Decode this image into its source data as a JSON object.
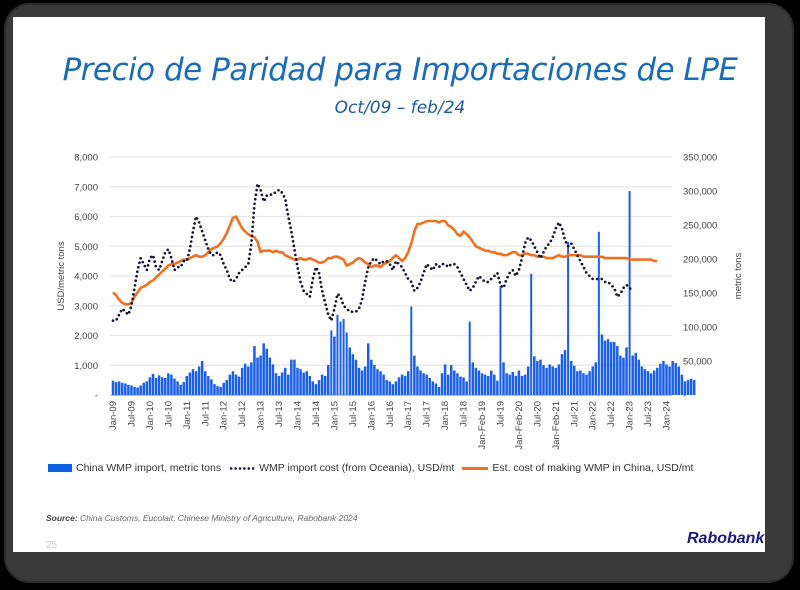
{
  "slide": {
    "title": "Precio de Paridad para Importaciones de LPE",
    "subtitle": "Oct/09 – feb/24",
    "source_label": "Source:",
    "source_text": " China Customs, Eucolait, Chinese Ministry of Agriculture, Rabobank 2024",
    "page_number": "25",
    "brand": "Rabobank"
  },
  "colors": {
    "bars": "#1a5fe6",
    "import_cost": "#14143c",
    "china_cost": "#f07020",
    "title": "#1a6cb8",
    "grid": "#e6e6e6"
  },
  "chart_data": {
    "type": "bar+line",
    "title": "Precio de Paridad para Importaciones de LPE",
    "subtitle": "Oct/09 – feb/24",
    "ylabel": "USD/metric tons",
    "y2label": "metric tons",
    "ylim": [
      0,
      8000
    ],
    "y2lim": [
      0,
      350000
    ],
    "yticks": [
      "-",
      "1,000",
      "2,000",
      "3,000",
      "4,000",
      "5,000",
      "6,000",
      "7,000",
      "8,000"
    ],
    "y2ticks": [
      "-",
      "50,000",
      "100,000",
      "150,000",
      "200,000",
      "250,000",
      "300,000",
      "350,000"
    ],
    "grid": true,
    "legend_position": "bottom",
    "xticks": [
      "Jan-09",
      "Jul-09",
      "Jan-10",
      "Jul-10",
      "Jan-11",
      "Jul-11",
      "Jan-12",
      "Jul-12",
      "Jan-13",
      "Jul-13",
      "Jan-14",
      "Jul-14",
      "Jan-15",
      "Jul-15",
      "Jan-16",
      "Jul-16",
      "Jan-17",
      "Jul-17",
      "Jan-18",
      "Jul-18",
      "Jan-Feb-19",
      "Jul-19",
      "Jan-Feb-20",
      "Jul-20",
      "Jan-Feb-21",
      "Jul-21",
      "Jan-22",
      "Jul-22",
      "Jan-23",
      "Jul-23",
      "Jan-24"
    ],
    "x_start": "Jan-09",
    "x_step": "month",
    "series": [
      {
        "name": "China WMP import, metric tons",
        "type": "bar",
        "axis": "right",
        "values": [
          21000,
          19000,
          20000,
          18000,
          17000,
          15000,
          14000,
          12000,
          11000,
          14000,
          18000,
          20000,
          26000,
          31000,
          25000,
          29000,
          26000,
          25000,
          32000,
          30000,
          24000,
          20000,
          15000,
          19000,
          28000,
          33000,
          38000,
          35000,
          42000,
          50000,
          35000,
          28000,
          23000,
          16000,
          13000,
          12000,
          18000,
          22000,
          30000,
          35000,
          30000,
          27000,
          40000,
          46000,
          42000,
          48000,
          72000,
          55000,
          58000,
          76000,
          68000,
          55000,
          45000,
          32000,
          28000,
          33000,
          40000,
          30000,
          52000,
          52000,
          40000,
          38000,
          33000,
          35000,
          28000,
          20000,
          16000,
          22000,
          30000,
          28000,
          44000,
          95000,
          86000,
          118000,
          108000,
          112000,
          92000,
          70000,
          60000,
          52000,
          40000,
          36000,
          42000,
          76000,
          52000,
          44000,
          38000,
          35000,
          30000,
          22000,
          20000,
          16000,
          20000,
          26000,
          30000,
          28000,
          35000,
          130000,
          58000,
          42000,
          36000,
          32000,
          30000,
          25000,
          20000,
          17000,
          12000,
          32000,
          45000,
          30000,
          44000,
          36000,
          32000,
          27000,
          26000,
          20000,
          108000,
          48000,
          40000,
          36000,
          32000,
          30000,
          28000,
          36000,
          30000,
          21000,
          160000,
          48000,
          32000,
          30000,
          34000,
          28000,
          36000,
          28000,
          30000,
          42000,
          178000,
          57000,
          50000,
          52000,
          44000,
          40000,
          45000,
          42000,
          40000,
          45000,
          60000,
          66000,
          225000,
          50000,
          43000,
          35000,
          36000,
          32000,
          30000,
          35000,
          42000,
          48000,
          240000,
          89000,
          80000,
          82000,
          78000,
          78000,
          72000,
          58000,
          55000,
          70000,
          300000,
          58000,
          62000,
          52000,
          42000,
          38000,
          35000,
          32000,
          36000,
          40000,
          46000,
          50000,
          45000,
          42000,
          50000,
          47000,
          42000,
          30000,
          20000,
          22000,
          24000,
          22000
        ],
        "color": "#1a5fe6"
      },
      {
        "name": "WMP import cost (from Oceania), USD/mt",
        "type": "line-dotted",
        "axis": "left",
        "values": [
          2500,
          2500,
          2700,
          2900,
          2800,
          2700,
          3000,
          3600,
          4200,
          4600,
          4400,
          4200,
          4600,
          4700,
          4300,
          4200,
          4500,
          4800,
          4900,
          4600,
          4200,
          4300,
          4300,
          4500,
          4500,
          4900,
          5500,
          6000,
          5800,
          5500,
          5200,
          4900,
          4700,
          4700,
          4800,
          4700,
          4400,
          4200,
          3900,
          3800,
          3900,
          4100,
          4200,
          4300,
          4400,
          5100,
          6400,
          7100,
          6900,
          6500,
          6700,
          6700,
          6800,
          6800,
          6900,
          6800,
          6600,
          6000,
          5500,
          4900,
          4300,
          3800,
          3500,
          3400,
          3300,
          3900,
          4300,
          4100,
          3500,
          3100,
          2700,
          2500,
          2900,
          3400,
          3300,
          3000,
          2900,
          2800,
          2800,
          2800,
          2900,
          3200,
          3800,
          4300,
          4500,
          4600,
          4500,
          4400,
          4500,
          4500,
          4400,
          4200,
          4500,
          4400,
          4300,
          4100,
          3900,
          3800,
          3500,
          3600,
          3800,
          4100,
          4400,
          4300,
          4200,
          4400,
          4300,
          4400,
          4400,
          4300,
          4400,
          4400,
          4300,
          4100,
          3900,
          3700,
          3500,
          3600,
          3800,
          4000,
          3900,
          3800,
          3800,
          3900,
          4000,
          4100,
          3700,
          3600,
          3900,
          4100,
          4200,
          4000,
          4200,
          4600,
          5100,
          5300,
          5200,
          5000,
          4800,
          4600,
          4800,
          5000,
          5100,
          5300,
          5600,
          5800,
          5600,
          5200,
          5000,
          5100,
          4900,
          4700,
          4500,
          4300,
          4100,
          4000,
          3900,
          3900,
          3900,
          3900,
          3800,
          3800,
          3700,
          3600,
          3300,
          3400,
          3600,
          3700,
          3600,
          3500
        ],
        "color": "#14143c"
      },
      {
        "name": "Est. cost of making WMP in China, USD/mt",
        "type": "line",
        "axis": "left",
        "values": [
          3450,
          3350,
          3200,
          3100,
          3050,
          3050,
          3100,
          3300,
          3450,
          3600,
          3650,
          3700,
          3800,
          3850,
          3950,
          4050,
          4150,
          4250,
          4350,
          4400,
          4400,
          4450,
          4500,
          4550,
          4550,
          4600,
          4650,
          4700,
          4650,
          4650,
          4700,
          4800,
          4900,
          4950,
          5000,
          5100,
          5250,
          5450,
          5700,
          5950,
          6000,
          5800,
          5600,
          5500,
          5400,
          5350,
          5300,
          5150,
          4800,
          4850,
          4850,
          4850,
          4800,
          4850,
          4800,
          4800,
          4700,
          4650,
          4600,
          4550,
          4550,
          4600,
          4550,
          4550,
          4600,
          4550,
          4500,
          4450,
          4450,
          4500,
          4600,
          4600,
          4650,
          4650,
          4600,
          4550,
          4350,
          4400,
          4450,
          4550,
          4600,
          4550,
          4450,
          4400,
          4300,
          4350,
          4350,
          4300,
          4400,
          4450,
          4500,
          4600,
          4700,
          4600,
          4500,
          4600,
          4800,
          5100,
          5500,
          5750,
          5750,
          5800,
          5850,
          5850,
          5850,
          5850,
          5800,
          5850,
          5850,
          5700,
          5650,
          5550,
          5400,
          5350,
          5500,
          5400,
          5300,
          5150,
          5000,
          4950,
          4900,
          4850,
          4850,
          4800,
          4800,
          4750,
          4750,
          4700,
          4700,
          4750,
          4800,
          4800,
          4700,
          4700,
          4750,
          4750,
          4700,
          4700,
          4650,
          4650,
          4650,
          4600,
          4600,
          4600,
          4650,
          4700,
          4650,
          4650,
          4700,
          4700,
          4700,
          4700,
          4700,
          4650,
          4650,
          4650,
          4650,
          4650,
          4650,
          4650,
          4600,
          4600,
          4600,
          4600,
          4600,
          4600,
          4600,
          4600,
          4550,
          4550,
          4550,
          4550,
          4550,
          4550,
          4550,
          4550,
          4500,
          4500
        ],
        "color": "#f07020"
      }
    ]
  },
  "legend": {
    "bars_label": "China WMP import, metric tons",
    "import_cost_label": "WMP import cost (from Oceania), USD/mt",
    "china_cost_label": "Est. cost of making WMP in China, USD/mt"
  }
}
